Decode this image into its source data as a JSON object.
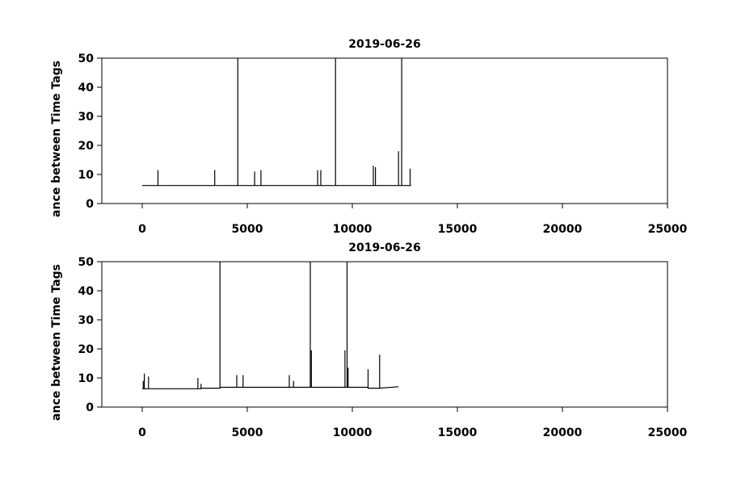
{
  "chart_data": [
    {
      "type": "line",
      "title": "2019-06-26",
      "ylabel": "ance between Time Tags",
      "color": "#000000",
      "xlim": [
        -1923,
        25000
      ],
      "ylim": [
        0,
        50
      ],
      "xticks": [
        0,
        5000,
        10000,
        15000,
        20000,
        25000
      ],
      "yticks": [
        0,
        10,
        20,
        30,
        40,
        50
      ],
      "x": [
        0,
        750,
        750,
        750,
        3450,
        3450,
        3450,
        4550,
        4550,
        4550,
        5350,
        5350,
        5350,
        5650,
        5650,
        5650,
        8350,
        8350,
        8350,
        8500,
        8500,
        8500,
        9200,
        9200,
        9200,
        11000,
        11000,
        11000,
        11100,
        11100,
        11100,
        12200,
        12200,
        12200,
        12350,
        12350,
        12350,
        12750,
        12750,
        12750,
        12800
      ],
      "values": [
        6.2,
        6.2,
        11.5,
        6.2,
        6.2,
        11.5,
        6.2,
        6.2,
        50,
        6.2,
        6.2,
        11,
        6.2,
        6.2,
        11.5,
        6.2,
        6.2,
        11.5,
        6.2,
        6.2,
        11.5,
        6.2,
        6.2,
        50,
        6.2,
        6.2,
        13,
        6.2,
        6.2,
        12.5,
        6.2,
        6.2,
        18,
        6.2,
        6.2,
        50,
        6.2,
        6.2,
        12,
        6.2,
        6.2
      ]
    },
    {
      "type": "line",
      "title": "2019-06-26",
      "ylabel": "ance between Time Tags",
      "color": "#000000",
      "xlim": [
        -1923,
        25000
      ],
      "ylim": [
        0,
        50
      ],
      "xticks": [
        0,
        5000,
        10000,
        15000,
        20000,
        25000
      ],
      "yticks": [
        0,
        10,
        20,
        30,
        40,
        50
      ],
      "x": [
        0,
        50,
        50,
        50,
        100,
        100,
        100,
        300,
        300,
        300,
        2650,
        2650,
        2650,
        2800,
        2800,
        2800,
        3700,
        3700,
        3700,
        4500,
        4500,
        4500,
        4800,
        4800,
        4800,
        7000,
        7000,
        7000,
        7200,
        7200,
        7200,
        8000,
        8000,
        8000,
        8050,
        8050,
        8050,
        9650,
        9650,
        9650,
        9750,
        9750,
        9750,
        9800,
        9800,
        9800,
        10750,
        10750,
        10750,
        11300,
        11300,
        11300,
        12200
      ],
      "values": [
        6.3,
        6.3,
        9,
        6.3,
        6.3,
        11.5,
        6.3,
        6.3,
        10.5,
        6.3,
        6.3,
        10,
        6.3,
        6.3,
        8,
        6.5,
        6.5,
        50,
        6.8,
        6.8,
        11,
        6.8,
        6.8,
        11,
        6.8,
        6.8,
        11,
        6.8,
        6.8,
        9,
        6.8,
        6.8,
        50,
        6.8,
        6.8,
        19.5,
        6.8,
        6.8,
        19.5,
        6.8,
        6.8,
        50,
        6.8,
        6.8,
        13.5,
        6.8,
        6.8,
        13,
        6.5,
        6.5,
        18,
        6.5,
        7
      ]
    }
  ]
}
